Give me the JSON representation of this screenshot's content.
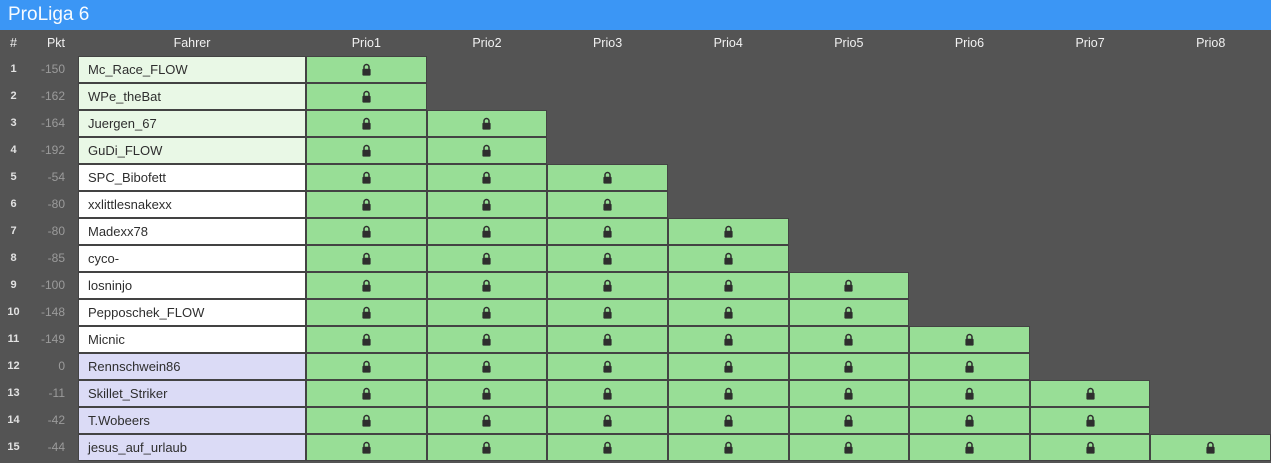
{
  "title": "ProLiga 6",
  "colors": {
    "title_bar": "#3b96f5",
    "background": "#545454",
    "cell_green": "#98de96",
    "driver_green": "#e9f8e6",
    "driver_white": "#ffffff",
    "driver_lavender": "#dbdbf6",
    "lock": "#2e2e2e"
  },
  "icons": {
    "lock": "padlock"
  },
  "table": {
    "rank_header": "#",
    "points_header": "Pkt",
    "driver_header": "Fahrer",
    "prio_headers": [
      "Prio1",
      "Prio2",
      "Prio3",
      "Prio4",
      "Prio5",
      "Prio6",
      "Prio7",
      "Prio8"
    ],
    "rows": [
      {
        "rank": "1",
        "points": "-150",
        "driver": "Mc_Race_FLOW",
        "driver_bg": "green",
        "locks": 1
      },
      {
        "rank": "2",
        "points": "-162",
        "driver": "WPe_theBat",
        "driver_bg": "green",
        "locks": 1
      },
      {
        "rank": "3",
        "points": "-164",
        "driver": "Juergen_67",
        "driver_bg": "green",
        "locks": 2
      },
      {
        "rank": "4",
        "points": "-192",
        "driver": "GuDi_FLOW",
        "driver_bg": "green",
        "locks": 2
      },
      {
        "rank": "5",
        "points": "-54",
        "driver": "SPC_Bibofett",
        "driver_bg": "white",
        "locks": 3
      },
      {
        "rank": "6",
        "points": "-80",
        "driver": "xxlittlesnakexx",
        "driver_bg": "white",
        "locks": 3
      },
      {
        "rank": "7",
        "points": "-80",
        "driver": "Madexx78",
        "driver_bg": "white",
        "locks": 4
      },
      {
        "rank": "8",
        "points": "-85",
        "driver": "cyco-",
        "driver_bg": "white",
        "locks": 4
      },
      {
        "rank": "9",
        "points": "-100",
        "driver": "losninjo",
        "driver_bg": "white",
        "locks": 5
      },
      {
        "rank": "10",
        "points": "-148",
        "driver": "Pepposchek_FLOW",
        "driver_bg": "white",
        "locks": 5
      },
      {
        "rank": "11",
        "points": "-149",
        "driver": "Micnic",
        "driver_bg": "white",
        "locks": 6
      },
      {
        "rank": "12",
        "points": "0",
        "driver": "Rennschwein86",
        "driver_bg": "lavender",
        "locks": 6
      },
      {
        "rank": "13",
        "points": "-11",
        "driver": "Skillet_Striker",
        "driver_bg": "lavender",
        "locks": 7
      },
      {
        "rank": "14",
        "points": "-42",
        "driver": "T.Wobeers",
        "driver_bg": "lavender",
        "locks": 7
      },
      {
        "rank": "15",
        "points": "-44",
        "driver": "jesus_auf_urlaub",
        "driver_bg": "lavender",
        "locks": 8
      }
    ]
  }
}
